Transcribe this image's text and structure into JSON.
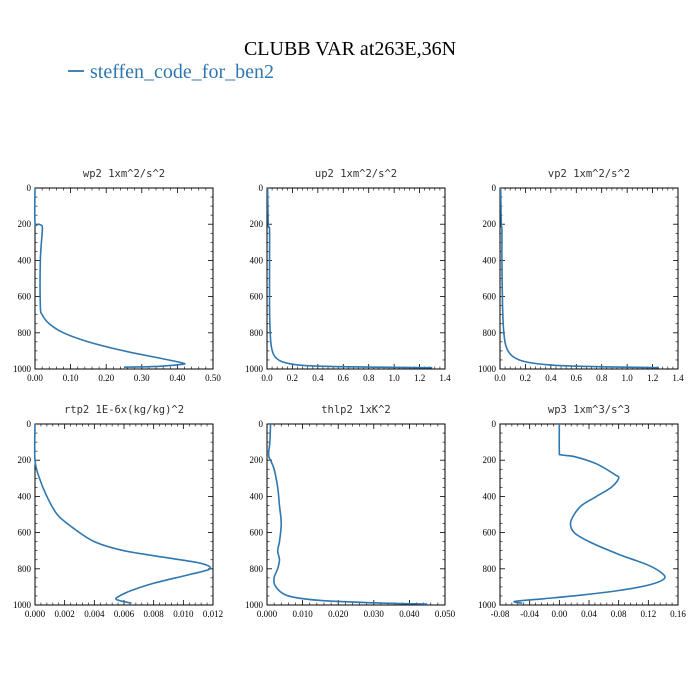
{
  "title": "CLUBB VAR at263E,36N",
  "legend": {
    "label": "steffen_code_for_ben2",
    "color": "#2e77b0",
    "placement": "top-left"
  },
  "chart_data": [
    {
      "type": "line",
      "title": "wp2  1xm^2/s^2",
      "xlim": [
        0,
        0.5
      ],
      "xticks": [
        "0.00",
        "0.10",
        "0.20",
        "0.30",
        "0.40",
        "0.50"
      ],
      "xtickvals": [
        0,
        0.1,
        0.2,
        0.3,
        0.4,
        0.5
      ],
      "ylim": [
        1000,
        0
      ],
      "yticks": [
        "0",
        "200",
        "400",
        "600",
        "800",
        "1000"
      ],
      "ytickvals": [
        0,
        200,
        400,
        600,
        800,
        1000
      ],
      "series": [
        {
          "x": [
            0,
            0,
            0.01,
            0.02,
            0.02,
            0.015,
            0.015,
            0.02,
            0.04,
            0.08,
            0.15,
            0.25,
            0.35,
            0.4,
            0.42,
            0.41,
            0.35,
            0.25
          ],
          "y": [
            0,
            190,
            200,
            210,
            250,
            400,
            650,
            700,
            750,
            800,
            850,
            900,
            940,
            960,
            970,
            975,
            985,
            990
          ]
        }
      ]
    },
    {
      "type": "line",
      "title": "up2  1xm^2/s^2",
      "xlim": [
        0,
        1.4
      ],
      "xticks": [
        "0.0",
        "0.2",
        "0.4",
        "0.6",
        "0.8",
        "1.0",
        "1.2",
        "1.4"
      ],
      "xtickvals": [
        0,
        0.2,
        0.4,
        0.6,
        0.8,
        1.0,
        1.2,
        1.4
      ],
      "ylim": [
        1000,
        0
      ],
      "yticks": [
        "0",
        "200",
        "400",
        "600",
        "800",
        "1000"
      ],
      "ytickvals": [
        0,
        200,
        400,
        600,
        800,
        1000
      ],
      "series": [
        {
          "x": [
            0.005,
            0.01,
            0.02,
            0.02,
            0.02,
            0.025,
            0.035,
            0.06,
            0.12,
            0.25,
            0.5,
            0.9,
            1.3
          ],
          "y": [
            0,
            200,
            230,
            400,
            650,
            800,
            880,
            930,
            960,
            978,
            986,
            990,
            993
          ]
        }
      ]
    },
    {
      "type": "line",
      "title": "vp2  1xm^2/s^2",
      "xlim": [
        0,
        1.4
      ],
      "xticks": [
        "0.0",
        "0.2",
        "0.4",
        "0.6",
        "0.8",
        "1.0",
        "1.2",
        "1.4"
      ],
      "xtickvals": [
        0,
        0.2,
        0.4,
        0.6,
        0.8,
        1.0,
        1.2,
        1.4
      ],
      "ylim": [
        1000,
        0
      ],
      "yticks": [
        "0",
        "200",
        "400",
        "600",
        "800",
        "1000"
      ],
      "ytickvals": [
        0,
        200,
        400,
        600,
        800,
        1000
      ],
      "series": [
        {
          "x": [
            0.005,
            0.01,
            0.015,
            0.015,
            0.02,
            0.03,
            0.05,
            0.1,
            0.2,
            0.4,
            0.7,
            1.0,
            1.25
          ],
          "y": [
            0,
            200,
            230,
            400,
            650,
            800,
            880,
            930,
            960,
            978,
            986,
            990,
            993
          ]
        }
      ]
    },
    {
      "type": "line",
      "title": "rtp2  1E-6x(kg/kg)^2",
      "xlim": [
        0,
        0.012
      ],
      "xticks": [
        "0.000",
        "0.002",
        "0.004",
        "0.006",
        "0.008",
        "0.010",
        "0.012"
      ],
      "xtickvals": [
        0,
        0.002,
        0.004,
        0.006,
        0.008,
        0.01,
        0.012
      ],
      "ylim": [
        1000,
        0
      ],
      "yticks": [
        "0",
        "200",
        "400",
        "600",
        "800",
        "1000"
      ],
      "ytickvals": [
        0,
        200,
        400,
        600,
        800,
        1000
      ],
      "series": [
        {
          "x": [
            0,
            0,
            0.0003,
            0.0008,
            0.0015,
            0.0025,
            0.004,
            0.006,
            0.009,
            0.0112,
            0.0118,
            0.0105,
            0.008,
            0.0065,
            0.0057,
            0.0055,
            0.0065
          ],
          "y": [
            0,
            200,
            300,
            400,
            500,
            570,
            650,
            700,
            740,
            770,
            800,
            830,
            880,
            920,
            950,
            970,
            990
          ]
        }
      ]
    },
    {
      "type": "line",
      "title": "thlp2  1xK^2",
      "xlim": [
        0,
        0.05
      ],
      "xticks": [
        "0.000",
        "0.010",
        "0.020",
        "0.030",
        "0.040",
        "0.050"
      ],
      "xtickvals": [
        0,
        0.01,
        0.02,
        0.03,
        0.04,
        0.05
      ],
      "ylim": [
        1000,
        0
      ],
      "yticks": [
        "0",
        "200",
        "400",
        "600",
        "800",
        "1000"
      ],
      "ytickvals": [
        0,
        200,
        400,
        600,
        800,
        1000
      ],
      "series": [
        {
          "x": [
            0.001,
            0.0008,
            0.0005,
            0.0005,
            0.001,
            0.002,
            0.003,
            0.0035,
            0.004,
            0.0035,
            0.003,
            0.0035,
            0.003,
            0.002,
            0.0025,
            0.006,
            0.015,
            0.03,
            0.045
          ],
          "y": [
            0,
            100,
            150,
            180,
            200,
            250,
            350,
            450,
            550,
            650,
            700,
            750,
            800,
            850,
            900,
            950,
            975,
            988,
            995
          ]
        }
      ]
    },
    {
      "type": "line",
      "title": "wp3  1xm^3/s^3",
      "xlim": [
        -0.08,
        0.16
      ],
      "xticks": [
        "-0.08",
        "-0.04",
        "0.00",
        "0.04",
        "0.08",
        "0.12",
        "0.16"
      ],
      "xtickvals": [
        -0.08,
        -0.04,
        0,
        0.04,
        0.08,
        0.12,
        0.16
      ],
      "ylim": [
        1000,
        0
      ],
      "yticks": [
        "0",
        "200",
        "400",
        "600",
        "800",
        "1000"
      ],
      "ytickvals": [
        0,
        200,
        400,
        600,
        800,
        1000
      ],
      "series": [
        {
          "x": [
            0,
            0,
            0.002,
            0.02,
            0.05,
            0.075,
            0.08,
            0.07,
            0.05,
            0.03,
            0.02,
            0.015,
            0.02,
            0.04,
            0.08,
            0.12,
            0.14,
            0.14,
            0.12,
            0.08,
            0.03,
            -0.02,
            -0.06,
            -0.05
          ],
          "y": [
            0,
            150,
            170,
            180,
            220,
            280,
            300,
            350,
            400,
            450,
            500,
            550,
            600,
            650,
            720,
            780,
            830,
            860,
            890,
            920,
            945,
            965,
            980,
            990
          ]
        }
      ]
    }
  ]
}
